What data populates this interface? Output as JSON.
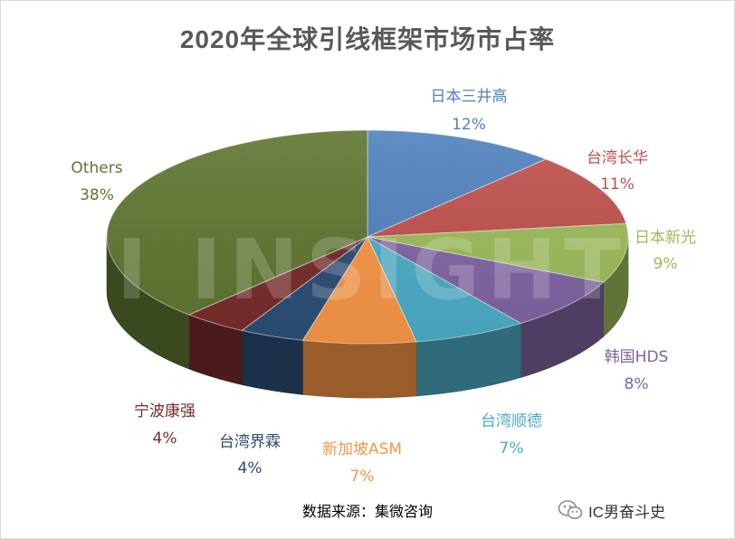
{
  "chart_data": {
    "type": "pie",
    "title": "2020年全球引线框架市场市占率",
    "slices": [
      {
        "label": "日本三井高",
        "value": 12,
        "value_label": "12%",
        "color": "#4f81bd"
      },
      {
        "label": "台湾长华",
        "value": 11,
        "value_label": "11%",
        "color": "#c0504d"
      },
      {
        "label": "日本新光",
        "value": 9,
        "value_label": "9%",
        "color": "#9bbb59"
      },
      {
        "label": "韩国HDS",
        "value": 8,
        "value_label": "8%",
        "color": "#8064a2"
      },
      {
        "label": "台湾顺德",
        "value": 7,
        "value_label": "7%",
        "color": "#4bacc6"
      },
      {
        "label": "新加坡ASM",
        "value": 7,
        "value_label": "7%",
        "color": "#f79646"
      },
      {
        "label": "台湾界霖",
        "value": 4,
        "value_label": "4%",
        "color": "#2c4d75"
      },
      {
        "label": "宁波康强",
        "value": 4,
        "value_label": "4%",
        "color": "#772c2a"
      },
      {
        "label": "Others",
        "value": 38,
        "value_label": "38%",
        "color": "#5f7530"
      }
    ],
    "legend": "none",
    "style": "3d-pie",
    "watermark": "INSIGHTS"
  },
  "source_note": "数据来源：集微咨询",
  "brand": {
    "text": "IC男奋斗史",
    "icon": "wechat-icon"
  }
}
